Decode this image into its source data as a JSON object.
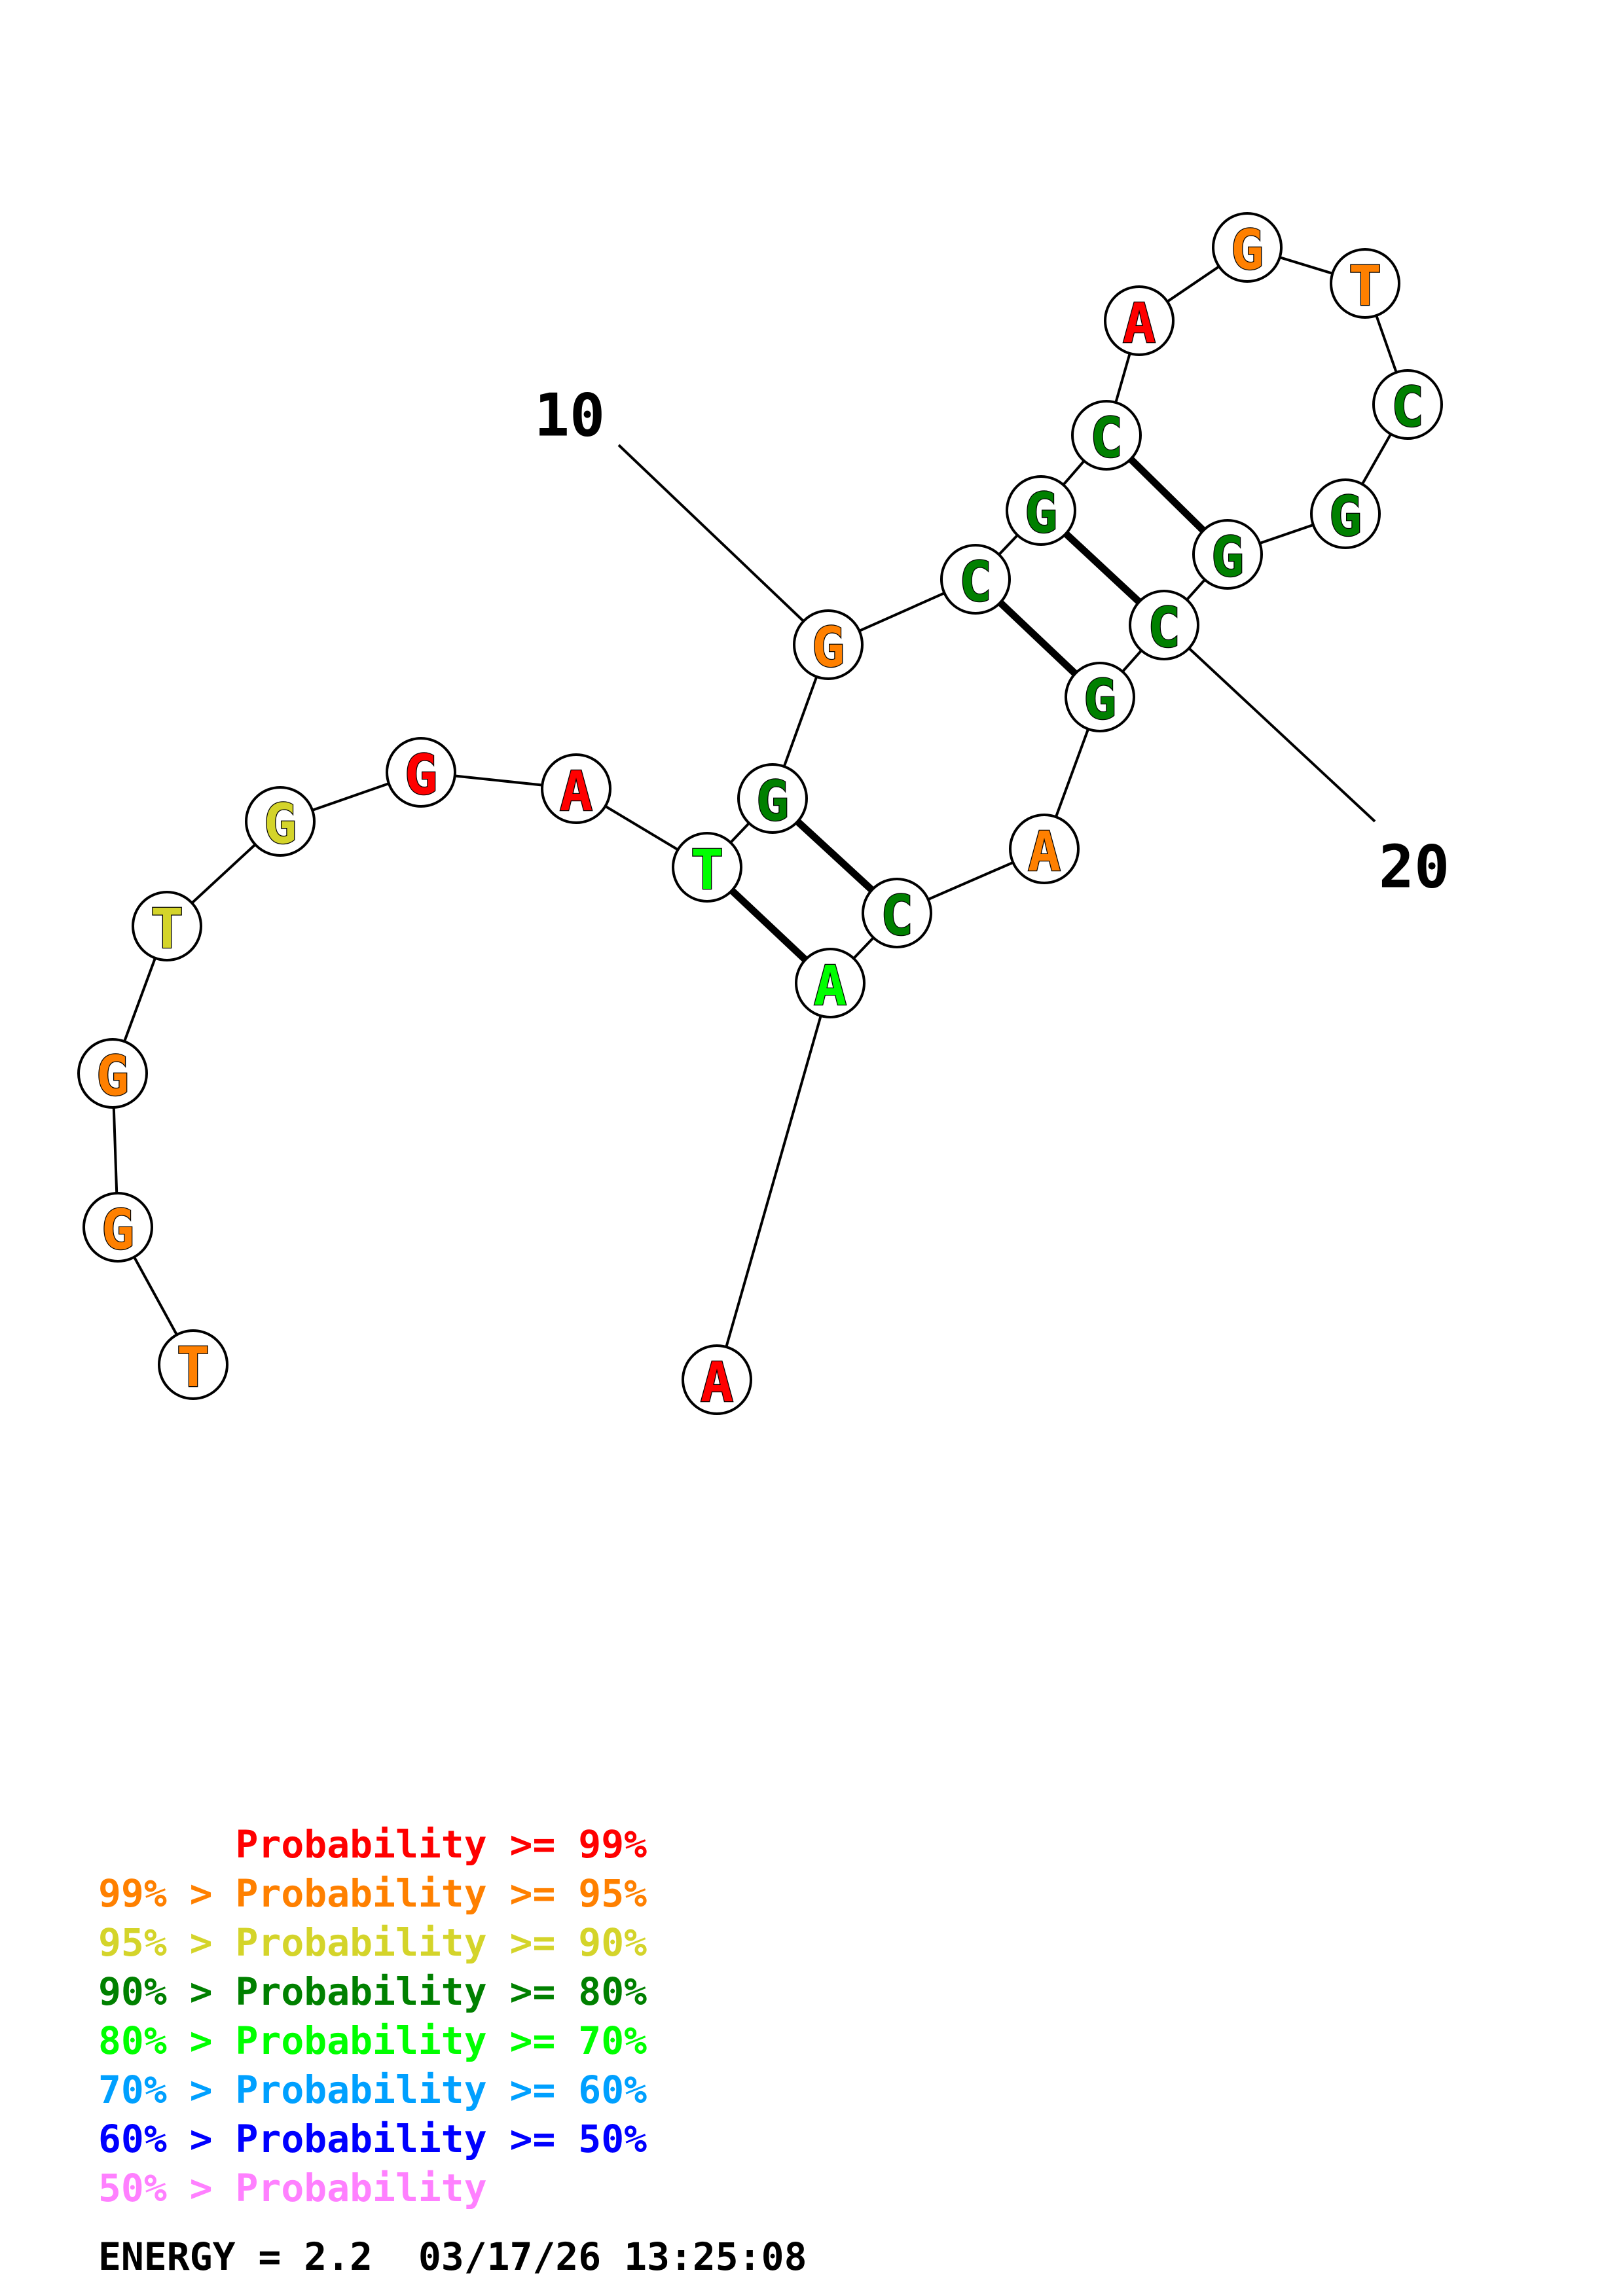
{
  "colors": {
    "p99": "#ff0000",
    "p95": "#ff8000",
    "p90": "#d4d42a",
    "p80": "#008000",
    "p70": "#00ff00",
    "p60": "#00a0ff",
    "p50": "#0000ff",
    "plow": "#ff80ff"
  },
  "nucleotides": [
    {
      "base": "T",
      "prob": "p95"
    },
    {
      "base": "G",
      "prob": "p95"
    },
    {
      "base": "G",
      "prob": "p95"
    },
    {
      "base": "T",
      "prob": "p90"
    },
    {
      "base": "G",
      "prob": "p90"
    },
    {
      "base": "G",
      "prob": "p99"
    },
    {
      "base": "A",
      "prob": "p99"
    },
    {
      "base": "T",
      "prob": "p70"
    },
    {
      "base": "G",
      "prob": "p80"
    },
    {
      "base": "G",
      "prob": "p95"
    },
    {
      "base": "C",
      "prob": "p80"
    },
    {
      "base": "G",
      "prob": "p80"
    },
    {
      "base": "C",
      "prob": "p80"
    },
    {
      "base": "A",
      "prob": "p99"
    },
    {
      "base": "G",
      "prob": "p95"
    },
    {
      "base": "T",
      "prob": "p95"
    },
    {
      "base": "C",
      "prob": "p80"
    },
    {
      "base": "G",
      "prob": "p80"
    },
    {
      "base": "G",
      "prob": "p80"
    },
    {
      "base": "C",
      "prob": "p80"
    },
    {
      "base": "G",
      "prob": "p80"
    },
    {
      "base": "A",
      "prob": "p95"
    },
    {
      "base": "C",
      "prob": "p80"
    },
    {
      "base": "A",
      "prob": "p70"
    },
    {
      "base": "A",
      "prob": "p99"
    }
  ],
  "base_pairs": [
    [
      8,
      24
    ],
    [
      9,
      23
    ],
    [
      11,
      21
    ],
    [
      12,
      20
    ],
    [
      13,
      19
    ]
  ],
  "position_labels": [
    {
      "text": "10",
      "index": 10
    },
    {
      "text": "20",
      "index": 20
    }
  ],
  "legend": [
    {
      "text": "      Probability >= 99%",
      "prob": "p99"
    },
    {
      "text": "99% > Probability >= 95%",
      "prob": "p95"
    },
    {
      "text": "95% > Probability >= 90%",
      "prob": "p90"
    },
    {
      "text": "90% > Probability >= 80%",
      "prob": "p80"
    },
    {
      "text": "80% > Probability >= 70%",
      "prob": "p70"
    },
    {
      "text": "70% > Probability >= 60%",
      "prob": "p60"
    },
    {
      "text": "60% > Probability >= 50%",
      "prob": "p50"
    },
    {
      "text": "50% > Probability",
      "prob": "plow"
    }
  ],
  "energy_line": "ENERGY = 2.2  03/17/26 13:25:08"
}
